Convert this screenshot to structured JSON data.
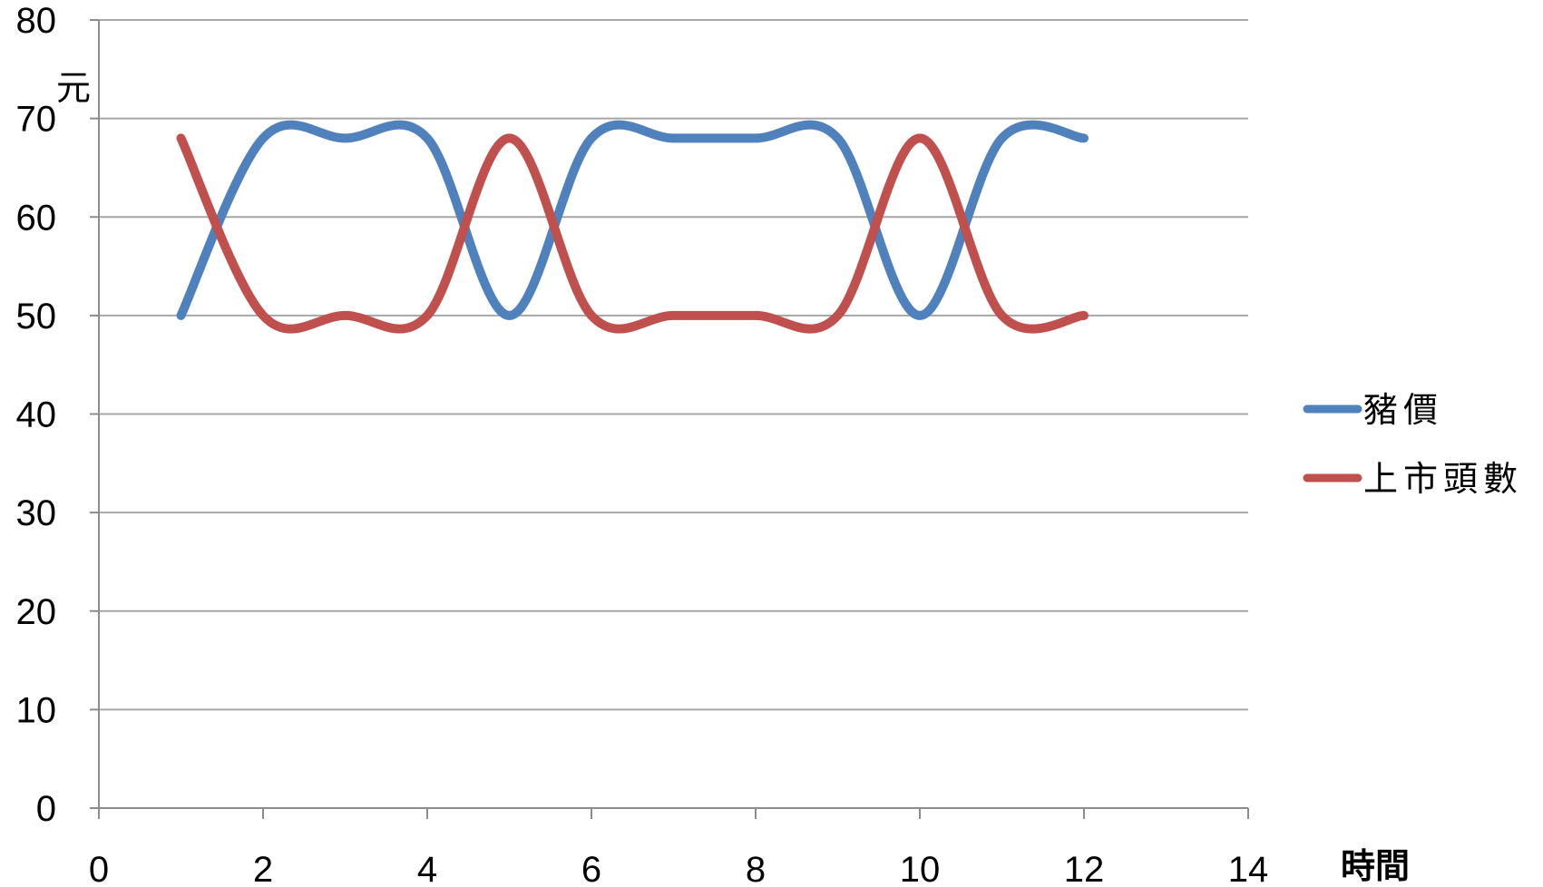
{
  "chart_data": {
    "type": "line",
    "smooth": true,
    "title": "",
    "xlabel": "時間",
    "ylabel": "元",
    "xlim": [
      0,
      14
    ],
    "ylim": [
      0,
      80
    ],
    "x_ticks": [
      0,
      2,
      4,
      6,
      8,
      10,
      12,
      14
    ],
    "y_ticks": [
      0,
      10,
      20,
      30,
      40,
      50,
      60,
      70,
      80
    ],
    "x_tick_labels": [
      "0",
      "2",
      "4",
      "6",
      "8",
      "10",
      "12",
      "14"
    ],
    "y_tick_labels": [
      "0",
      "10",
      "20",
      "30",
      "40",
      "50",
      "60",
      "70",
      "80"
    ],
    "grid": "horizontal",
    "legend_position": "right",
    "x": [
      1,
      2,
      3,
      4,
      5,
      6,
      7,
      8,
      9,
      10,
      11,
      12
    ],
    "series": [
      {
        "name": "豬價",
        "color": "#4f81bd",
        "values": [
          50,
          68,
          68,
          68,
          50,
          68,
          68,
          68,
          68,
          50,
          68,
          68
        ]
      },
      {
        "name": "上市頭數",
        "color": "#c0504d",
        "values": [
          68,
          50,
          50,
          50,
          68,
          50,
          50,
          50,
          50,
          68,
          50,
          50
        ]
      }
    ],
    "colors": {
      "grid": "#a6a6a6",
      "axis": "#8c8c8c"
    }
  }
}
